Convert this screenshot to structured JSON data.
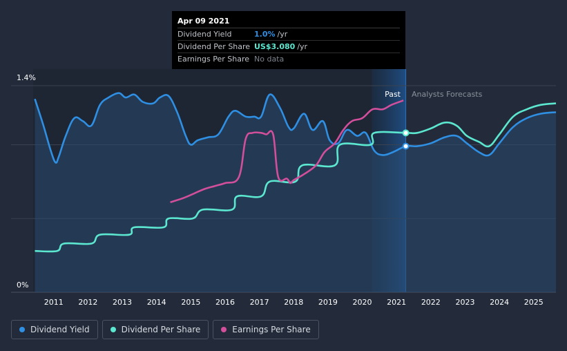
{
  "chart_data": {
    "type": "line",
    "y_axis_labels": [
      "1.4%",
      "0%"
    ],
    "ylim_percent": [
      0,
      1.4
    ],
    "x_range": [
      2010.4,
      2025.65
    ],
    "x_ticks": [
      "2011",
      "2012",
      "2013",
      "2014",
      "2015",
      "2016",
      "2017",
      "2018",
      "2019",
      "2020",
      "2021",
      "2022",
      "2023",
      "2024",
      "2025"
    ],
    "divider_x": 2021.27,
    "forecast_band_start": 2020.28,
    "past_label": "Past",
    "forecast_label": "Analysts Forecasts",
    "series": [
      {
        "name": "Dividend Yield",
        "color": "#2f8fe3",
        "unit": "percent",
        "points": [
          [
            2010.45,
            1.31
          ],
          [
            2010.7,
            1.13
          ],
          [
            2010.9,
            0.97
          ],
          [
            2011.05,
            0.88
          ],
          [
            2011.15,
            0.92
          ],
          [
            2011.35,
            1.06
          ],
          [
            2011.6,
            1.18
          ],
          [
            2011.85,
            1.16
          ],
          [
            2012.1,
            1.13
          ],
          [
            2012.35,
            1.27
          ],
          [
            2012.6,
            1.32
          ],
          [
            2012.9,
            1.35
          ],
          [
            2013.1,
            1.32
          ],
          [
            2013.35,
            1.34
          ],
          [
            2013.6,
            1.29
          ],
          [
            2013.9,
            1.28
          ],
          [
            2014.1,
            1.32
          ],
          [
            2014.35,
            1.33
          ],
          [
            2014.6,
            1.22
          ],
          [
            2014.85,
            1.06
          ],
          [
            2015.0,
            1.0
          ],
          [
            2015.2,
            1.03
          ],
          [
            2015.5,
            1.05
          ],
          [
            2015.8,
            1.07
          ],
          [
            2016.1,
            1.19
          ],
          [
            2016.3,
            1.23
          ],
          [
            2016.6,
            1.19
          ],
          [
            2016.85,
            1.19
          ],
          [
            2017.05,
            1.19
          ],
          [
            2017.3,
            1.34
          ],
          [
            2017.6,
            1.25
          ],
          [
            2017.85,
            1.12
          ],
          [
            2018.0,
            1.11
          ],
          [
            2018.3,
            1.21
          ],
          [
            2018.55,
            1.1
          ],
          [
            2018.85,
            1.16
          ],
          [
            2019.05,
            1.03
          ],
          [
            2019.3,
            1.01
          ],
          [
            2019.55,
            1.1
          ],
          [
            2019.85,
            1.06
          ],
          [
            2020.1,
            1.08
          ],
          [
            2020.35,
            0.96
          ],
          [
            2020.6,
            0.93
          ],
          [
            2020.9,
            0.95
          ],
          [
            2021.27,
            0.99
          ],
          [
            2021.6,
            0.99
          ],
          [
            2022.0,
            1.01
          ],
          [
            2022.4,
            1.05
          ],
          [
            2022.75,
            1.06
          ],
          [
            2023.05,
            1.01
          ],
          [
            2023.4,
            0.95
          ],
          [
            2023.7,
            0.93
          ],
          [
            2024.0,
            1.01
          ],
          [
            2024.4,
            1.12
          ],
          [
            2024.8,
            1.18
          ],
          [
            2025.2,
            1.21
          ],
          [
            2025.65,
            1.22
          ]
        ]
      },
      {
        "name": "Dividend Per Share",
        "color": "#5ce8d0",
        "unit": "percent-equivalent",
        "points": [
          [
            2010.45,
            0.28
          ],
          [
            2011.1,
            0.28
          ],
          [
            2011.3,
            0.33
          ],
          [
            2012.1,
            0.33
          ],
          [
            2012.35,
            0.39
          ],
          [
            2013.2,
            0.39
          ],
          [
            2013.35,
            0.44
          ],
          [
            2014.2,
            0.44
          ],
          [
            2014.35,
            0.5
          ],
          [
            2015.05,
            0.5
          ],
          [
            2015.35,
            0.56
          ],
          [
            2016.2,
            0.56
          ],
          [
            2016.35,
            0.65
          ],
          [
            2017.05,
            0.65
          ],
          [
            2017.3,
            0.75
          ],
          [
            2018.05,
            0.75
          ],
          [
            2018.25,
            0.86
          ],
          [
            2019.2,
            0.86
          ],
          [
            2019.35,
            1.0
          ],
          [
            2020.25,
            1.0
          ],
          [
            2020.35,
            1.08
          ],
          [
            2021.27,
            1.08
          ],
          [
            2021.6,
            1.08
          ],
          [
            2022.0,
            1.11
          ],
          [
            2022.4,
            1.15
          ],
          [
            2022.75,
            1.13
          ],
          [
            2023.05,
            1.06
          ],
          [
            2023.4,
            1.02
          ],
          [
            2023.7,
            0.99
          ],
          [
            2024.0,
            1.07
          ],
          [
            2024.4,
            1.19
          ],
          [
            2024.8,
            1.24
          ],
          [
            2025.2,
            1.27
          ],
          [
            2025.65,
            1.28
          ]
        ]
      },
      {
        "name": "Earnings Per Share",
        "color": "#d24f9c",
        "unit": "percent-equivalent",
        "points": [
          [
            2014.4,
            0.61
          ],
          [
            2014.8,
            0.64
          ],
          [
            2015.1,
            0.67
          ],
          [
            2015.4,
            0.7
          ],
          [
            2015.7,
            0.72
          ],
          [
            2016.0,
            0.74
          ],
          [
            2016.4,
            0.78
          ],
          [
            2016.6,
            1.04
          ],
          [
            2016.8,
            1.08
          ],
          [
            2017.05,
            1.08
          ],
          [
            2017.2,
            1.07
          ],
          [
            2017.4,
            1.07
          ],
          [
            2017.55,
            0.78
          ],
          [
            2017.8,
            0.77
          ],
          [
            2017.9,
            0.74
          ],
          [
            2018.0,
            0.76
          ],
          [
            2018.3,
            0.8
          ],
          [
            2018.65,
            0.86
          ],
          [
            2018.9,
            0.95
          ],
          [
            2019.2,
            1.01
          ],
          [
            2019.45,
            1.1
          ],
          [
            2019.7,
            1.16
          ],
          [
            2020.0,
            1.18
          ],
          [
            2020.3,
            1.24
          ],
          [
            2020.6,
            1.24
          ],
          [
            2020.85,
            1.27
          ],
          [
            2021.2,
            1.3
          ]
        ]
      }
    ],
    "tooltip": {
      "date": "Apr 09 2021",
      "rows": [
        {
          "label": "Dividend Yield",
          "value": "1.0%",
          "unit": "/yr",
          "color": "#2f8fe3"
        },
        {
          "label": "Dividend Per Share",
          "value": "US$3.080",
          "unit": "/yr",
          "color": "#5ce8d0"
        },
        {
          "label": "Earnings Per Share",
          "value": "No data",
          "unit": "",
          "color": "#7d838d"
        }
      ]
    },
    "legend": [
      {
        "name": "Dividend Yield",
        "color": "#2f8fe3"
      },
      {
        "name": "Dividend Per Share",
        "color": "#5ce8d0"
      },
      {
        "name": "Earnings Per Share",
        "color": "#d24f9c"
      }
    ]
  }
}
